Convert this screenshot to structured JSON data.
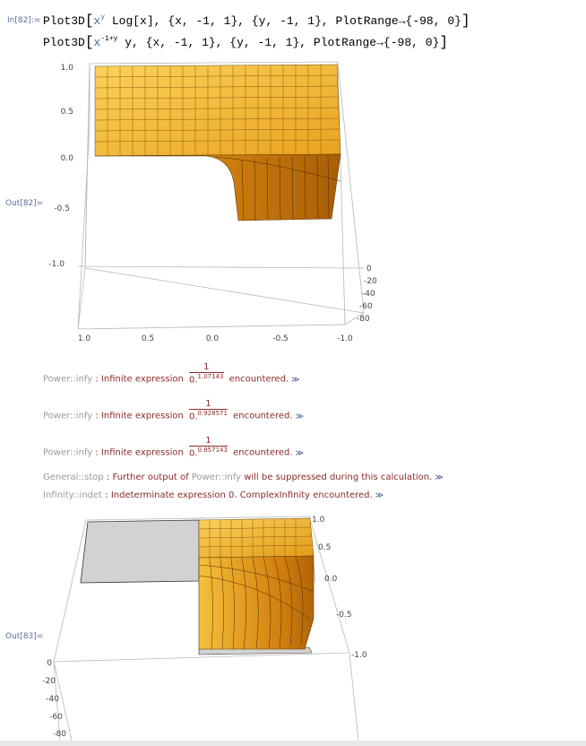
{
  "input_label": "In[82]:=",
  "input_line1": {
    "fn": "Plot3D",
    "x_var": "x",
    "y_sup": "y",
    "log_part": " Log[x], ",
    "ranges": "{x, -1, 1}, {y, -1, 1}, ",
    "plotrange_key": "PlotRange",
    "arrow": "→",
    "plotrange_val": "{-98, 0}"
  },
  "input_line2": {
    "fn": "Plot3D",
    "x_var": "x",
    "exponent": "-1+y",
    "y_part": " y, ",
    "ranges": "{x, -1, 1}, {y, -1, 1}, ",
    "plotrange_key": "PlotRange",
    "arrow": "→",
    "plotrange_val": "{-98, 0}"
  },
  "out82_label": "Out[82]=",
  "out83_label": "Out[83]=",
  "plot1": {
    "vertical_ticks": [
      "1.0",
      "0.5",
      "0.0",
      "-0.5",
      "-1.0"
    ],
    "depth_ticks": [
      "0",
      "-20",
      "-40",
      "-60",
      "-80"
    ],
    "bottom_ticks": [
      "1.0",
      "0.5",
      "0.0",
      "-0.5",
      "-1.0"
    ]
  },
  "plot2": {
    "right_ticks": [
      "1.0",
      "0.5",
      "0.0",
      "-0.5",
      "-1.0"
    ],
    "left_ticks": [
      "0",
      "-20",
      "-40",
      "-60",
      "-80"
    ]
  },
  "messages": [
    {
      "tag": "Power::infy",
      "text_before": "Infinite expression ",
      "num": "1",
      "den_base": "0.",
      "den_exp": "1.07143",
      "text_after": "encountered."
    },
    {
      "tag": "Power::infy",
      "text_before": "Infinite expression ",
      "num": "1",
      "den_base": "0.",
      "den_exp": "0.928571",
      "text_after": "encountered."
    },
    {
      "tag": "Power::infy",
      "text_before": "Infinite expression ",
      "num": "1",
      "den_base": "0.",
      "den_exp": "0.857143",
      "text_after": "encountered."
    }
  ],
  "general_stop": {
    "tag": "General::stop",
    "text1": "Further output of ",
    "ref": "Power::infy",
    "text2": " will be suppressed during this calculation."
  },
  "infinity_indet": {
    "tag": "Infinity::indet",
    "text": "Indeterminate expression 0. ComplexInfinity encountered."
  },
  "sep": " : ",
  "more_link": "≫",
  "colors": {
    "surface_light": "#f9c84a",
    "surface_dark": "#e08a10",
    "label_blue": "#5a6f9e",
    "msg_red": "#8a2a2a"
  }
}
